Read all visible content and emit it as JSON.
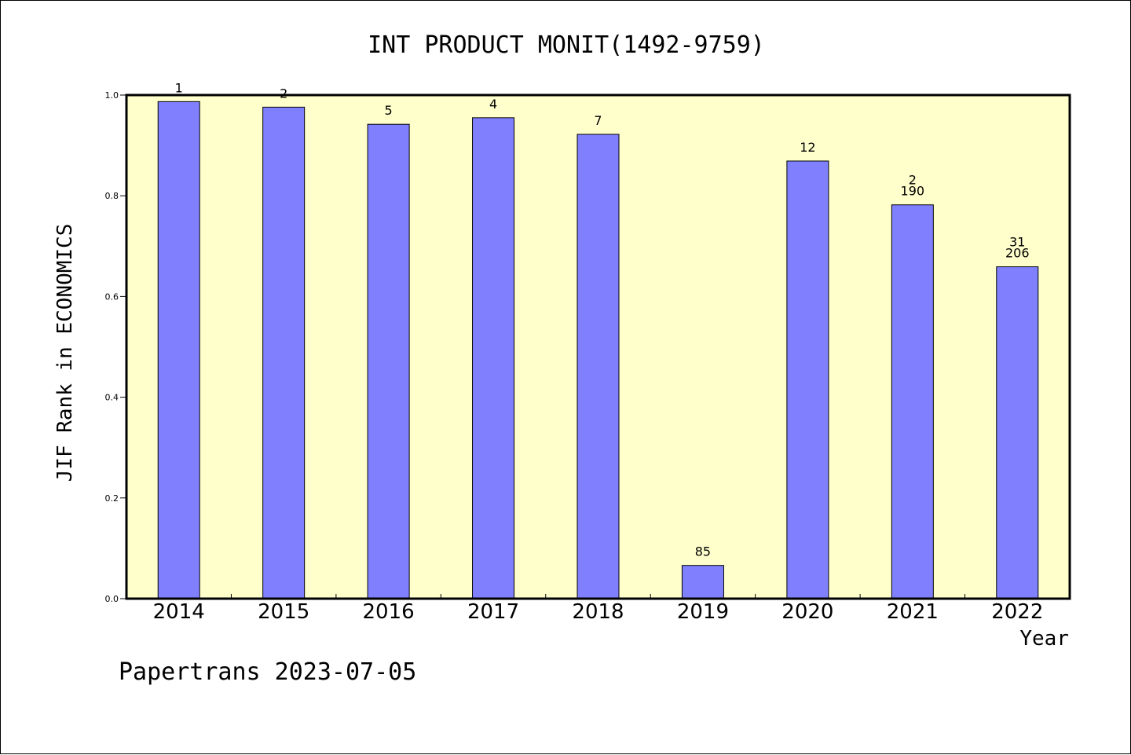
{
  "chart_data": {
    "type": "bar",
    "title": "INT PRODUCT MONIT(1492-9759)",
    "xlabel": "Year",
    "ylabel": "JIF Rank in ECONOMICS",
    "ylim": [
      0,
      1.0
    ],
    "yticks": [
      "0.0",
      "0.2",
      "0.4",
      "0.6",
      "0.8",
      "1.0"
    ],
    "categories": [
      "2014",
      "2015",
      "2016",
      "2017",
      "2018",
      "2019",
      "2020",
      "2021",
      "2022"
    ],
    "values": [
      0.987,
      0.976,
      0.942,
      0.955,
      0.922,
      0.066,
      0.869,
      0.782,
      0.659
    ],
    "bar_labels": [
      [
        "1"
      ],
      [
        "2"
      ],
      [
        "5"
      ],
      [
        "4"
      ],
      [
        "7"
      ],
      [
        "85"
      ],
      [
        "12"
      ],
      [
        "2",
        "190"
      ],
      [
        "31",
        "206"
      ]
    ],
    "grid": false,
    "colors": {
      "bar": "#8080ff",
      "plot_background": "#ffffcc",
      "border": "#000000"
    }
  },
  "footer": {
    "text": "Papertrans 2023-07-05"
  }
}
